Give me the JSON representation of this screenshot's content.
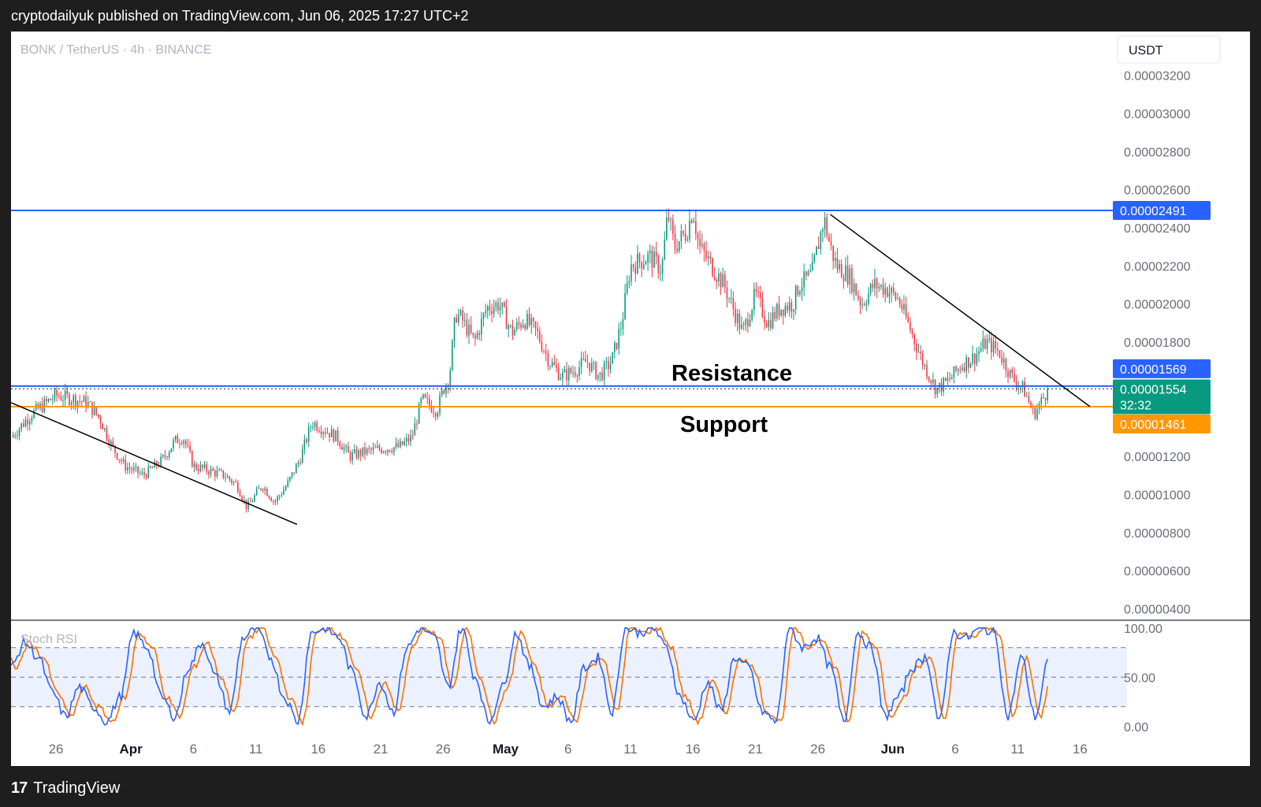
{
  "header": {
    "text": "cryptodailyuk published on TradingView.com, Jun 06, 2025 17:27 UTC+2"
  },
  "footer": {
    "logo": "17",
    "brand": "TradingView"
  },
  "chart_data": [
    {
      "type": "candlestick",
      "symbol_label": "BONK / TetherUS · 4h · BINANCE",
      "currency_label": "USDT",
      "y_ticks": [
        "0.00003200",
        "0.00003000",
        "0.00002800",
        "0.00002600",
        "0.00002400",
        "0.00002200",
        "0.00002000",
        "0.00001800",
        "0.00001200",
        "0.00001000",
        "0.00000800",
        "0.00000600",
        "0.00000400"
      ],
      "y_tick_values": [
        3.2e-05,
        3e-05,
        2.8e-05,
        2.6e-05,
        2.4e-05,
        2.2e-05,
        2e-05,
        1.8e-05,
        1.2e-05,
        1e-05,
        8e-06,
        6e-06,
        4e-06
      ],
      "ylim": [
        3.4e-06,
        3.43e-05
      ],
      "x_ticks": [
        "26",
        "Apr",
        "6",
        "11",
        "16",
        "21",
        "26",
        "May",
        "6",
        "11",
        "16",
        "21",
        "26",
        "Jun",
        "6",
        "11",
        "16"
      ],
      "x_tick_days": [
        -6,
        0,
        5,
        10,
        15,
        20,
        25,
        30,
        35,
        40,
        45,
        50,
        55,
        61,
        66,
        71,
        76
      ],
      "x_tick_bold": [
        false,
        true,
        false,
        false,
        false,
        false,
        false,
        true,
        false,
        false,
        false,
        false,
        false,
        true,
        false,
        false,
        false
      ],
      "xlim_days": [
        -9.6,
        78.5
      ],
      "close_keypoints": [
        [
          -9.6,
          1.3
        ],
        [
          -8,
          1.42
        ],
        [
          -6,
          1.52
        ],
        [
          -4.5,
          1.5
        ],
        [
          -3.5,
          1.48
        ],
        [
          -2.5,
          1.4
        ],
        [
          -1.5,
          1.25
        ],
        [
          -0.5,
          1.15
        ],
        [
          1,
          1.1
        ],
        [
          2.5,
          1.18
        ],
        [
          3.5,
          1.28
        ],
        [
          4.2,
          1.3
        ],
        [
          5,
          1.15
        ],
        [
          6.5,
          1.12
        ],
        [
          7.5,
          1.1
        ],
        [
          8.5,
          1.05
        ],
        [
          9.3,
          0.93
        ],
        [
          10.5,
          1.05
        ],
        [
          11.5,
          0.96
        ],
        [
          12.5,
          1.05
        ],
        [
          13.5,
          1.18
        ],
        [
          14.5,
          1.38
        ],
        [
          15.5,
          1.34
        ],
        [
          16.5,
          1.3
        ],
        [
          17.5,
          1.2
        ],
        [
          18.5,
          1.22
        ],
        [
          20,
          1.24
        ],
        [
          21.5,
          1.25
        ],
        [
          22.5,
          1.3
        ],
        [
          23.3,
          1.5
        ],
        [
          24.5,
          1.44
        ],
        [
          25,
          1.55
        ],
        [
          25.5,
          1.62
        ],
        [
          26,
          1.95
        ],
        [
          26.5,
          1.92
        ],
        [
          27.5,
          1.8
        ],
        [
          28.5,
          1.98
        ],
        [
          29.5,
          2.0
        ],
        [
          30.5,
          1.85
        ],
        [
          31.5,
          1.92
        ],
        [
          32.5,
          1.85
        ],
        [
          33.5,
          1.7
        ],
        [
          34.5,
          1.62
        ],
        [
          35.5,
          1.65
        ],
        [
          36.5,
          1.7
        ],
        [
          37.5,
          1.62
        ],
        [
          38.5,
          1.7
        ],
        [
          39.3,
          1.9
        ],
        [
          40,
          2.2
        ],
        [
          41.5,
          2.25
        ],
        [
          42.5,
          2.18
        ],
        [
          43,
          2.48
        ],
        [
          43.5,
          2.3
        ],
        [
          44.5,
          2.38
        ],
        [
          45,
          2.5
        ],
        [
          45.5,
          2.3
        ],
        [
          46.5,
          2.2
        ],
        [
          47.5,
          2.1
        ],
        [
          48.2,
          1.98
        ],
        [
          49,
          1.85
        ],
        [
          50,
          2.05
        ],
        [
          51,
          1.9
        ],
        [
          52,
          1.98
        ],
        [
          53,
          2.0
        ],
        [
          53.5,
          2.1
        ],
        [
          54.5,
          2.15
        ],
        [
          55.5,
          2.45
        ],
        [
          56,
          2.3
        ],
        [
          56.5,
          2.2
        ],
        [
          57.5,
          2.15
        ],
        [
          58.5,
          2.0
        ],
        [
          59.5,
          2.1
        ],
        [
          60.5,
          2.08
        ],
        [
          61.5,
          2.02
        ],
        [
          62.5,
          1.85
        ],
        [
          63.5,
          1.68
        ],
        [
          64.5,
          1.55
        ],
        [
          65.5,
          1.6
        ],
        [
          66.5,
          1.68
        ],
        [
          67.5,
          1.72
        ],
        [
          68.5,
          1.8
        ],
        [
          69.5,
          1.75
        ],
        [
          70.5,
          1.62
        ],
        [
          71.5,
          1.55
        ],
        [
          72.3,
          1.42
        ],
        [
          73,
          1.5
        ],
        [
          73.5,
          1.554
        ]
      ],
      "close_keypoints_scale": 1e-05,
      "lines": [
        {
          "name": "resistance",
          "value": 1.569e-05,
          "label": "0.00001569",
          "color": "#2962ff"
        },
        {
          "name": "current",
          "value": 1.554e-05,
          "label": "0.00001554",
          "countdown": "32:32",
          "color": "#089981",
          "style": "dotted"
        },
        {
          "name": "support",
          "value": 1.461e-05,
          "label": "0.00001461",
          "color": "#ff9800"
        },
        {
          "name": "range-high",
          "value": 2.491e-05,
          "label": "0.00002491",
          "color": "#2962ff"
        }
      ],
      "trendlines": [
        {
          "from": [
            -9.6,
            1.482e-05
          ],
          "to": [
            13.3,
            8.43e-06
          ]
        },
        {
          "from": [
            56,
            2.47e-05
          ],
          "to": [
            76.8,
            1.461e-05
          ]
        }
      ],
      "annotations": [
        "Resistance",
        "Support"
      ],
      "up_color": "#089981",
      "down_color": "#f23645"
    },
    {
      "type": "line",
      "title": "Stoch RSI",
      "y_ticks": [
        "100.00",
        "50.00",
        "0.00"
      ],
      "y_tick_values": [
        100,
        50,
        0
      ],
      "ylim": [
        -5,
        107
      ],
      "bands": [
        80,
        50,
        20
      ],
      "series": [
        {
          "color": "#2962ff"
        },
        {
          "color": "#ff6d00"
        }
      ],
      "pattern": [
        60,
        85,
        70,
        35,
        10,
        40,
        20,
        5,
        30,
        95,
        80,
        30,
        10,
        60,
        85,
        50,
        15,
        90,
        100,
        70,
        30,
        5,
        95,
        100,
        90,
        55,
        10,
        45,
        15,
        80,
        100,
        90,
        40,
        100,
        50,
        5,
        40,
        95,
        60,
        20,
        30,
        5,
        60,
        70,
        15,
        100,
        95,
        100,
        80,
        30,
        5,
        45,
        15,
        70,
        60,
        15,
        5,
        100,
        80,
        90,
        60,
        5,
        95,
        80,
        10,
        30,
        60,
        70,
        5,
        95,
        90,
        100,
        95,
        10,
        70,
        10
      ],
      "last_value": 68
    }
  ]
}
